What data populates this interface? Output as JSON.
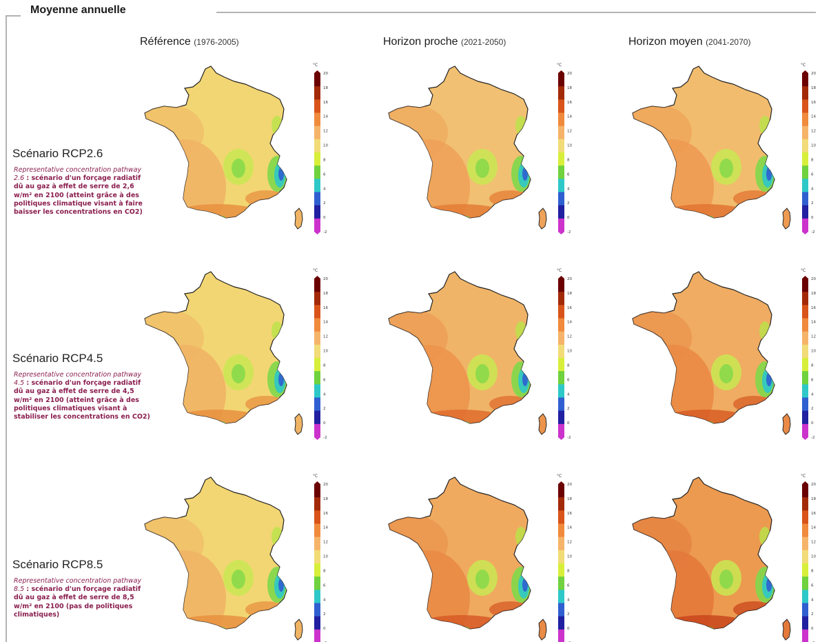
{
  "section_title": "Moyenne annuelle",
  "columns": [
    {
      "label": "Référence",
      "period": "(1976-2005)"
    },
    {
      "label": "Horizon proche",
      "period": "(2021-2050)"
    },
    {
      "label": "Horizon moyen",
      "period": "(2041-2070)"
    }
  ],
  "scenarios": [
    {
      "title": "Scénario RCP2.6",
      "desc_italic": "Representative concentration pathway 2.6",
      "desc_bold": " : scénario d'un forçage radiatif dû au gaz à effet de serre de 2,6 w/m² en 2100 (atteint grâce à des politiques climatique visant à faire baisser les concentrations en CO2)"
    },
    {
      "title": "Scénario RCP4.5",
      "desc_italic": "Representative concentration pathway 4.5",
      "desc_bold": " : scénario d'un forçage radiatif dû au gaz à effet de serre de 4,5 w/m² en 2100 (atteint grâce à des politiques climatiques visant à stabiliser les concentrations en CO2)"
    },
    {
      "title": "Scénario RCP8.5",
      "desc_italic": "Representative concentration pathway 8.5",
      "desc_bold": " : scénario d'un forçage radiatif dû au gaz à effet de serre de 8,5 w/m² en 2100 (pas de politiques climatiques)"
    }
  ],
  "legend": {
    "unit": "°C",
    "ticks": [
      "20",
      "18",
      "16",
      "14",
      "12",
      "10",
      "8",
      "6",
      "4",
      "2",
      "0",
      "-2"
    ],
    "colors": [
      "#6b0000",
      "#a32a08",
      "#d9541a",
      "#f08a3c",
      "#f5b46a",
      "#f2dc78",
      "#d7ef3a",
      "#6fd23e",
      "#2ec8c8",
      "#2f5fd0",
      "#2020a0",
      "#cc33cc"
    ]
  },
  "maps": [
    [
      {
        "base": "#f2d673",
        "warm": "#f0b465",
        "hot": "#e8903f"
      },
      {
        "base": "#f1c072",
        "warm": "#eea259",
        "hot": "#e47d36"
      },
      {
        "base": "#f1bc6e",
        "warm": "#ee9a52",
        "hot": "#e27433"
      }
    ],
    [
      {
        "base": "#f2d673",
        "warm": "#f0b465",
        "hot": "#e8903f"
      },
      {
        "base": "#f0b468",
        "warm": "#ec944c",
        "hot": "#df6c2e"
      },
      {
        "base": "#efac62",
        "warm": "#ea8a45",
        "hot": "#d85d26"
      }
    ],
    [
      {
        "base": "#f2d673",
        "warm": "#f0b465",
        "hot": "#e8903f"
      },
      {
        "base": "#f0aa60",
        "warm": "#e98a45",
        "hot": "#d75b27"
      },
      {
        "base": "#ec9a50",
        "warm": "#e4793a",
        "hot": "#c9461c"
      }
    ]
  ]
}
